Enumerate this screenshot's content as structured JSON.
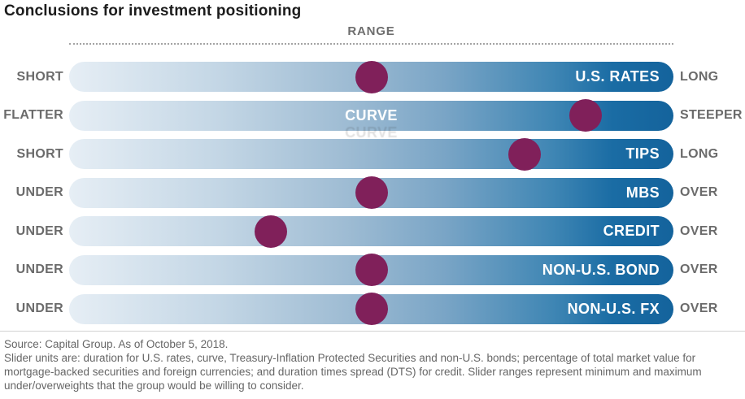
{
  "title": "Conclusions for investment positioning",
  "range_header": "RANGE",
  "chart_data": {
    "type": "slider",
    "title": "Conclusions for investment positioning",
    "range_label": "RANGE",
    "range": [
      0,
      100
    ],
    "rows": [
      {
        "name": "U.S. RATES",
        "left_label": "SHORT",
        "right_label": "LONG",
        "position_pct": 50.0,
        "label_align": "right"
      },
      {
        "name": "CURVE",
        "left_label": "FLATTER",
        "right_label": "STEEPER",
        "position_pct": 85.5,
        "label_align": "center"
      },
      {
        "name": "TIPS",
        "left_label": "SHORT",
        "right_label": "LONG",
        "position_pct": 75.4,
        "label_align": "right"
      },
      {
        "name": "MBS",
        "left_label": "UNDER",
        "right_label": "OVER",
        "position_pct": 50.0,
        "label_align": "right"
      },
      {
        "name": "CREDIT",
        "left_label": "UNDER",
        "right_label": "OVER",
        "position_pct": 33.4,
        "label_align": "right"
      },
      {
        "name": "NON-U.S. BOND",
        "left_label": "UNDER",
        "right_label": "OVER",
        "position_pct": 50.0,
        "label_align": "right"
      },
      {
        "name": "NON-U.S. FX",
        "left_label": "UNDER",
        "right_label": "OVER",
        "position_pct": 50.0,
        "label_align": "right"
      }
    ],
    "marker_color": "#80205A",
    "bar_gradient_start": "#e6eef5",
    "bar_gradient_end": "#14639c",
    "legend_position": "none",
    "grid": false
  },
  "footer": {
    "source": "Source: Capital Group. As of October 5, 2018.",
    "note": "Slider units are: duration for U.S. rates, curve, Treasury-Inflation Protected Securities and non-U.S. bonds; percentage of total market value for mortgage-backed securities and foreign currencies; and duration times spread (DTS) for credit. Slider ranges represent minimum and maximum under/overweights that the group would be willing to consider."
  },
  "colors": {
    "title_text": "#1c1c1c",
    "label_text": "#6b6b6b",
    "bar_name_text": "#ffffff",
    "footer_text": "#666666",
    "marker": "#80205A"
  }
}
